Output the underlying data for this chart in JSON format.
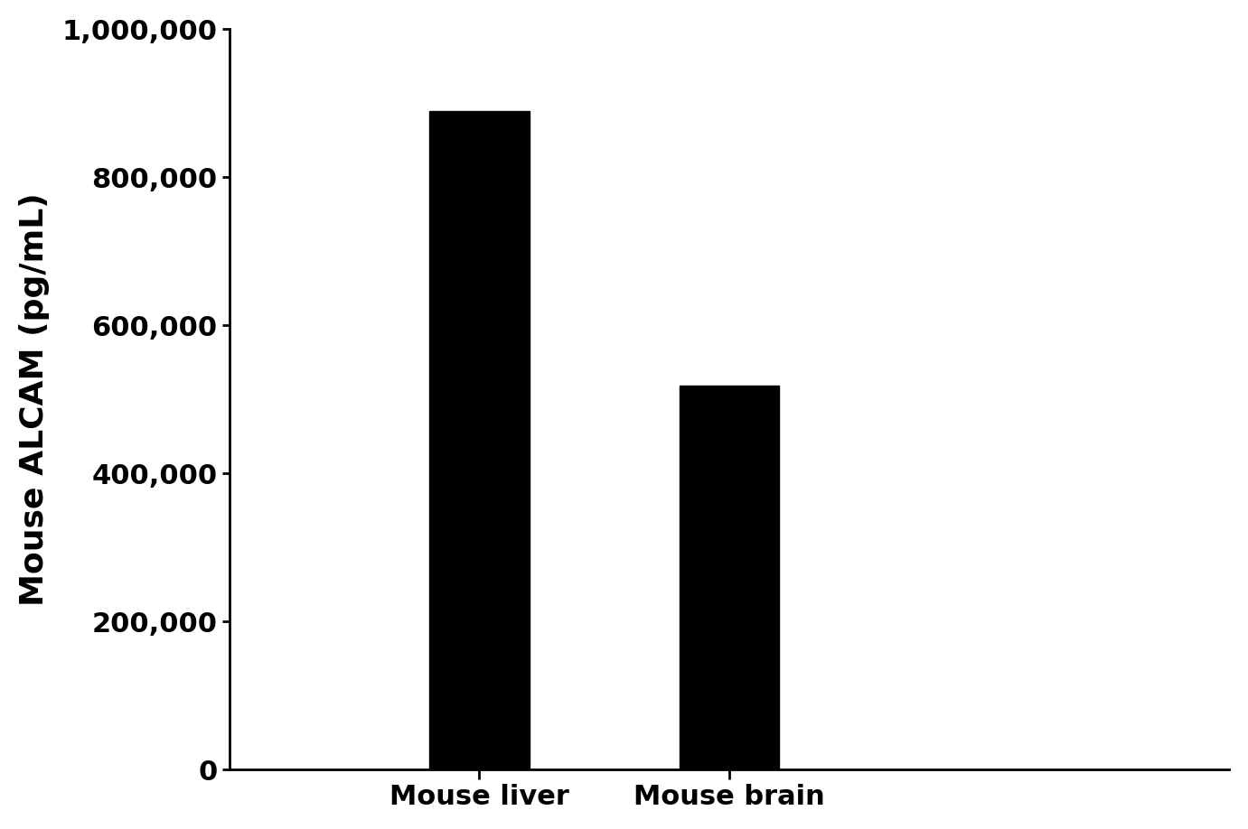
{
  "categories": [
    "Mouse liver",
    "Mouse brain"
  ],
  "values": [
    888916.9,
    518424.5
  ],
  "bar_colors": [
    "#000000",
    "#000000"
  ],
  "ylabel": "Mouse ALCAM (pg/mL)",
  "ylim": [
    0,
    1000000
  ],
  "yticks": [
    0,
    200000,
    400000,
    600000,
    800000,
    1000000
  ],
  "bar_positions": [
    1,
    2
  ],
  "bar_width": 0.4,
  "xlim": [
    0,
    4
  ],
  "background_color": "#ffffff",
  "tick_fontsize": 22,
  "label_fontsize": 26,
  "spine_linewidth": 2.0
}
